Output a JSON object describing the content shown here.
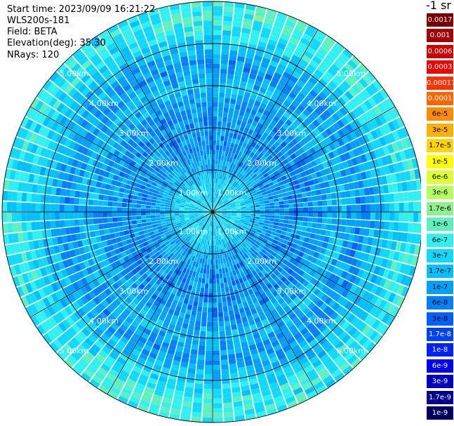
{
  "header": {
    "start_time": "Start time: 2023/09/09 16:21:22",
    "instrument": "WLS200s-181",
    "field": "Field: BETA",
    "elevation": "Elevation(deg): 35.30",
    "nrays": "NRays: 120"
  },
  "colorbar": {
    "title": "-1 sr",
    "entries": [
      {
        "label": "0.0017",
        "color": "#7a0000",
        "text_color": "#ffffff"
      },
      {
        "label": "0.001",
        "color": "#a30000",
        "text_color": "#ffffff"
      },
      {
        "label": "0.0006",
        "color": "#cc0000",
        "text_color": "#ffffff"
      },
      {
        "label": "0.0003",
        "color": "#f00000",
        "text_color": "#ffffff"
      },
      {
        "label": "0.00017",
        "color": "#ff3300",
        "text_color": "#ffffff"
      },
      {
        "label": "0.0001",
        "color": "#ff6600",
        "text_color": "#ffffff"
      },
      {
        "label": "6e-5",
        "color": "#ff8c00",
        "text_color": "#000000"
      },
      {
        "label": "3e-5",
        "color": "#ffb000",
        "text_color": "#000000"
      },
      {
        "label": "1.7e-5",
        "color": "#ffd400",
        "text_color": "#000000"
      },
      {
        "label": "1e-5",
        "color": "#ffff00",
        "text_color": "#000000"
      },
      {
        "label": "6e-6",
        "color": "#e0ff30",
        "text_color": "#000000"
      },
      {
        "label": "3e-6",
        "color": "#b4ff60",
        "text_color": "#000000"
      },
      {
        "label": "1.7e-6",
        "color": "#90f090",
        "text_color": "#000000"
      },
      {
        "label": "1e-6",
        "color": "#60f0c0",
        "text_color": "#000000"
      },
      {
        "label": "6e-7",
        "color": "#30f0f0",
        "text_color": "#000000"
      },
      {
        "label": "3e-7",
        "color": "#10d8ff",
        "text_color": "#000000"
      },
      {
        "label": "1.7e-7",
        "color": "#00c0ff",
        "text_color": "#000000"
      },
      {
        "label": "1e-7",
        "color": "#00a0ff",
        "text_color": "#000000"
      },
      {
        "label": "6e-8",
        "color": "#0080ff",
        "text_color": "#000000"
      },
      {
        "label": "3e-8",
        "color": "#0060ff",
        "text_color": "#000000"
      },
      {
        "label": "1.7e-8",
        "color": "#0040ff",
        "text_color": "#ffffff"
      },
      {
        "label": "1e-8",
        "color": "#0020ff",
        "text_color": "#ffffff"
      },
      {
        "label": "6e-9",
        "color": "#0000f0",
        "text_color": "#ffffff"
      },
      {
        "label": "3e-9",
        "color": "#0000c0",
        "text_color": "#ffffff"
      },
      {
        "label": "1.7e-9",
        "color": "#000090",
        "text_color": "#ffffff"
      },
      {
        "label": "1e-9",
        "color": "#000060",
        "text_color": "#ffffff"
      }
    ]
  },
  "chart_data": {
    "type": "heatmap",
    "projection": "polar-ppi",
    "title": "",
    "xlabel": "",
    "ylabel": "",
    "n_rays": 120,
    "max_range_km": 5,
    "range_rings_km": [
      1,
      2,
      3,
      4,
      5
    ],
    "ring_labels": [
      "1.00km",
      "2.00km",
      "3.00km",
      "4.00km",
      "5.00km"
    ],
    "grid_spokes_deg": [
      0,
      30,
      60,
      90,
      120,
      150,
      180,
      210,
      240,
      270,
      300,
      330
    ],
    "grid": true,
    "radial_profile": {
      "range_km": [
        0.0,
        0.3,
        0.6,
        1.0,
        1.5,
        2.0,
        2.5,
        3.0,
        3.5,
        4.0,
        4.5,
        5.0
      ],
      "level_index": [
        14.5,
        15.5,
        15.0,
        16.5,
        17.5,
        17.5,
        17.5,
        16.0,
        17.5,
        16.0,
        14.5,
        14.5
      ]
    }
  }
}
